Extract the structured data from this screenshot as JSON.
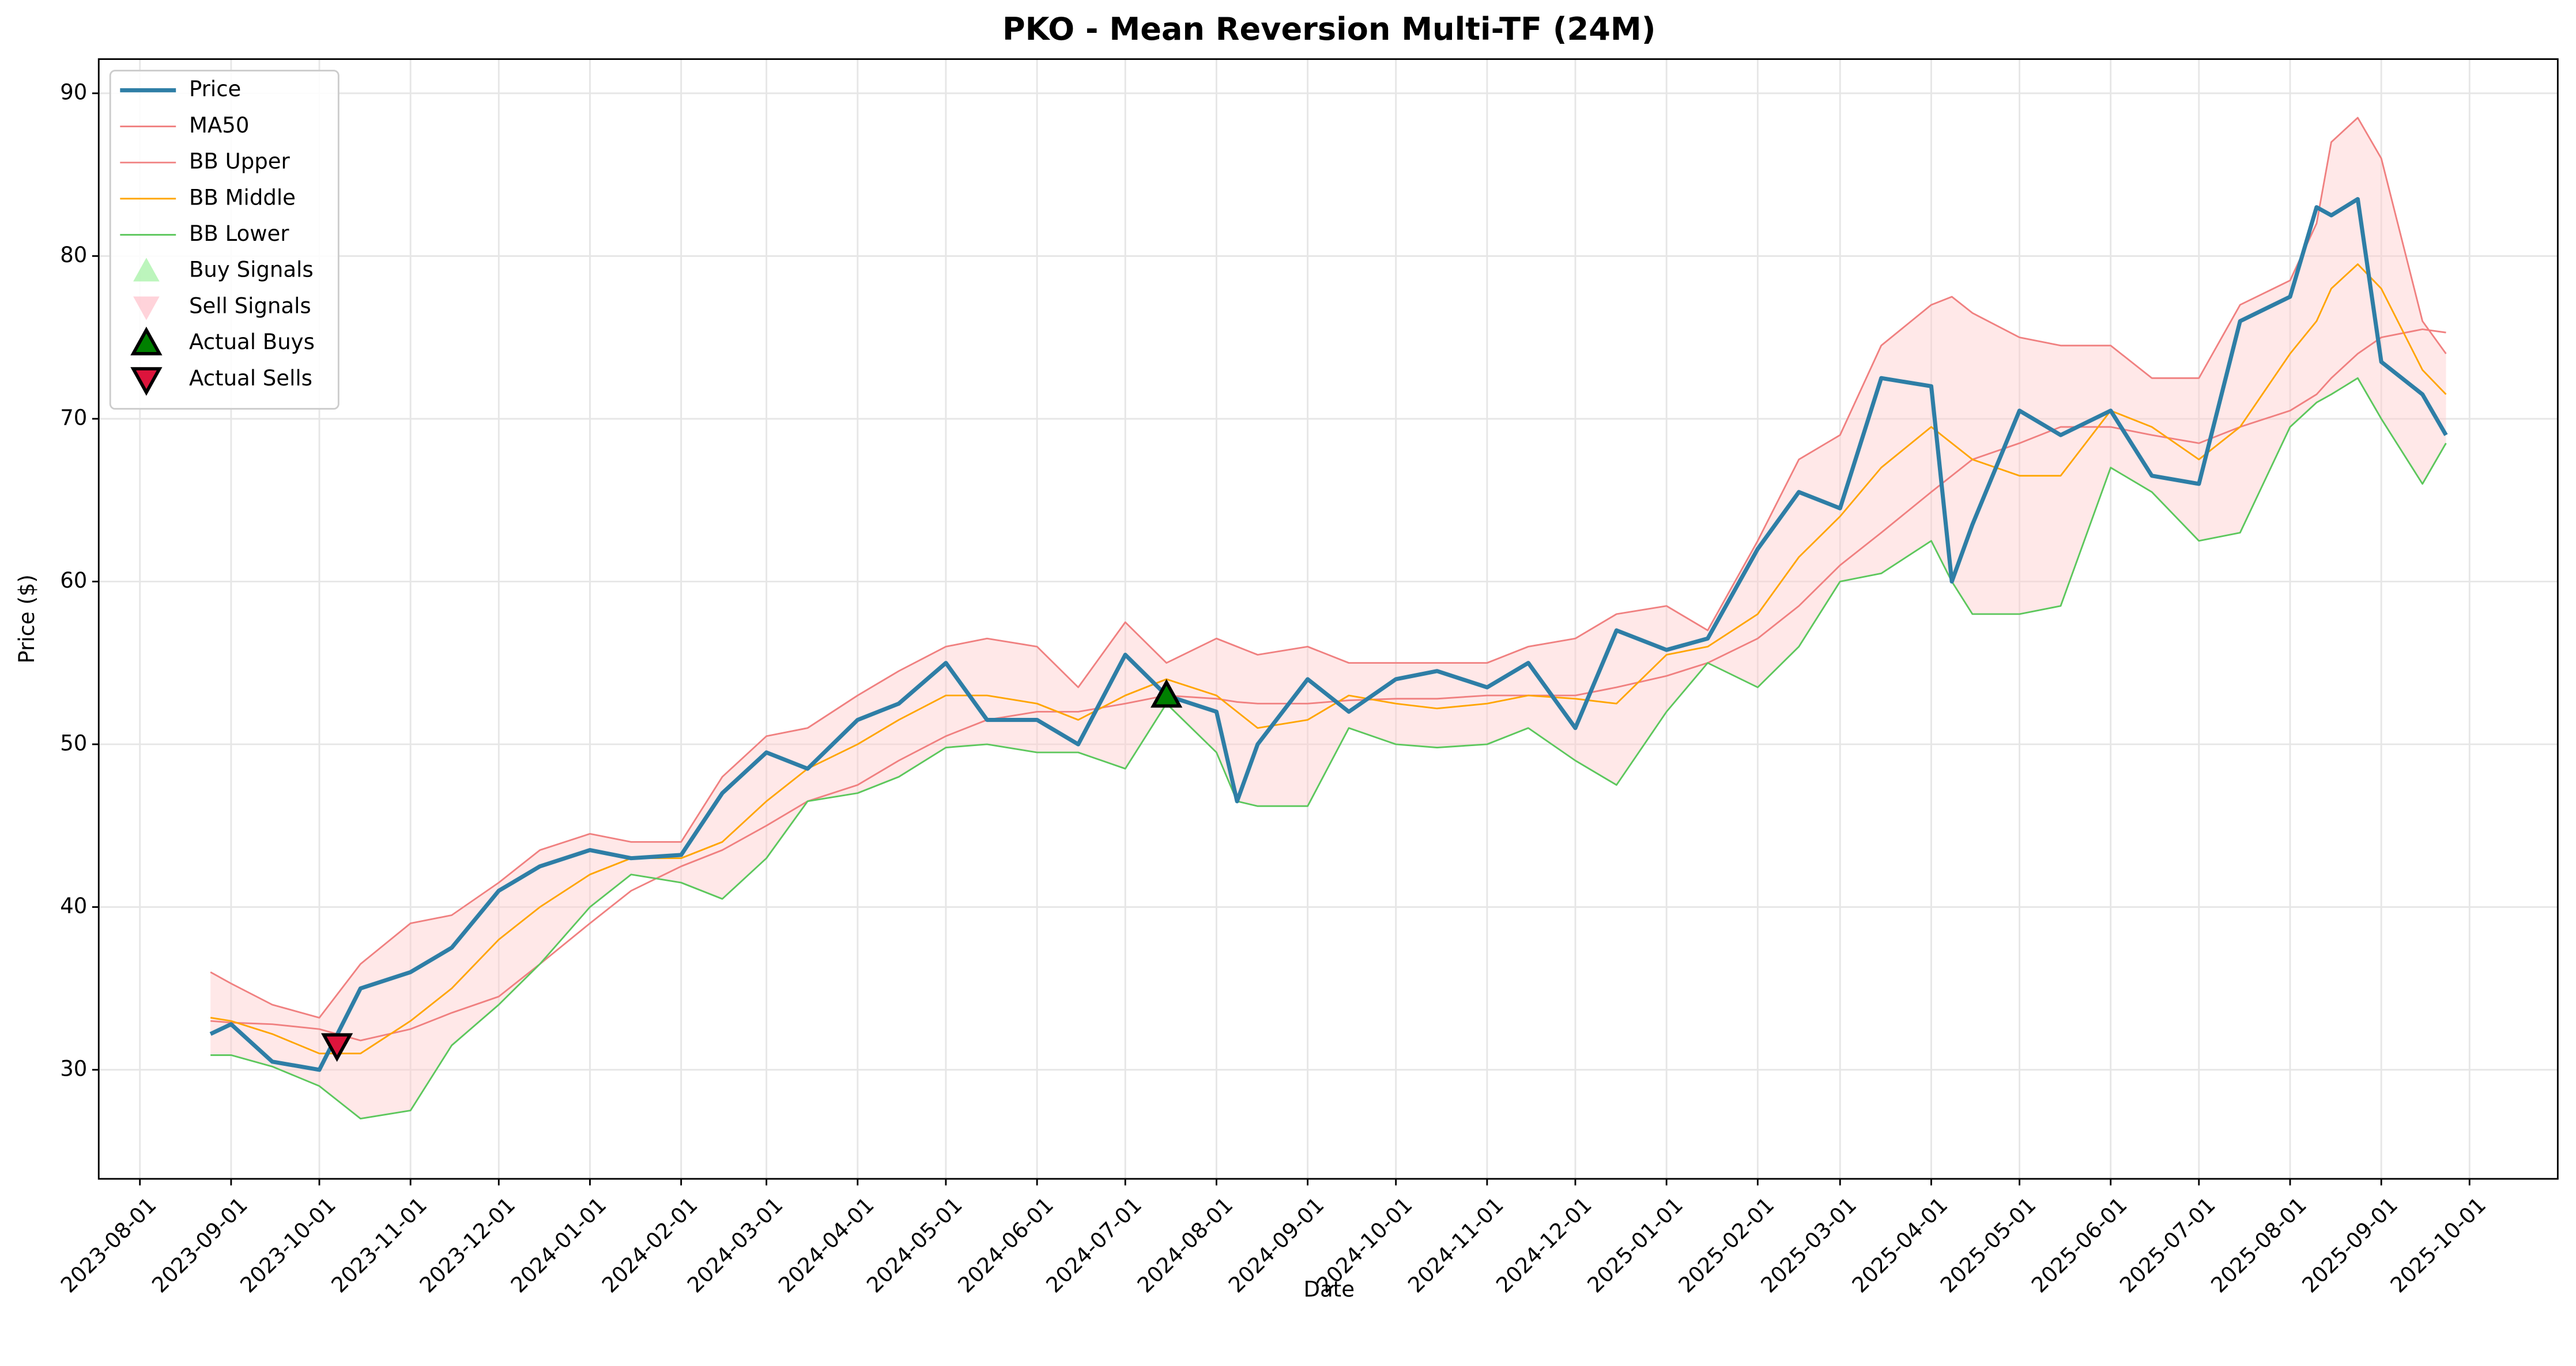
{
  "chart_data": {
    "type": "line",
    "title": "PKO - Mean Reversion Multi-TF (24M)",
    "x_label": "Date",
    "y_label": "Price ($)",
    "x": [
      "2023-08-25",
      "2023-09-01",
      "2023-09-15",
      "2023-10-01",
      "2023-10-15",
      "2023-11-01",
      "2023-11-15",
      "2023-12-01",
      "2023-12-15",
      "2024-01-01",
      "2024-01-15",
      "2024-02-01",
      "2024-02-15",
      "2024-03-01",
      "2024-03-15",
      "2024-04-01",
      "2024-04-15",
      "2024-05-01",
      "2024-05-15",
      "2024-06-01",
      "2024-06-15",
      "2024-07-01",
      "2024-07-15",
      "2024-08-01",
      "2024-08-08",
      "2024-08-15",
      "2024-09-01",
      "2024-09-15",
      "2024-10-01",
      "2024-10-15",
      "2024-11-01",
      "2024-11-15",
      "2024-12-01",
      "2024-12-15",
      "2025-01-01",
      "2025-01-15",
      "2025-02-01",
      "2025-02-15",
      "2025-03-01",
      "2025-03-15",
      "2025-04-01",
      "2025-04-08",
      "2025-04-15",
      "2025-05-01",
      "2025-05-15",
      "2025-06-01",
      "2025-06-15",
      "2025-07-01",
      "2025-07-15",
      "2025-08-01",
      "2025-08-10",
      "2025-08-15",
      "2025-08-24",
      "2025-09-01",
      "2025-09-15",
      "2025-09-23"
    ],
    "series": [
      {
        "name": "Price",
        "color": "#2e7ea6",
        "width": 2.5,
        "values": [
          32.2,
          32.8,
          30.5,
          30.0,
          35.0,
          36.0,
          37.5,
          41.0,
          42.5,
          43.5,
          43.0,
          43.2,
          47.0,
          49.5,
          48.5,
          51.5,
          52.5,
          55.0,
          51.5,
          51.5,
          50.0,
          55.5,
          53.0,
          52.0,
          46.5,
          50.0,
          54.0,
          52.0,
          54.0,
          54.5,
          53.5,
          55.0,
          51.0,
          57.0,
          55.8,
          56.5,
          62.0,
          65.5,
          64.5,
          72.5,
          72.0,
          60.0,
          63.5,
          70.5,
          69.0,
          70.5,
          66.5,
          66.0,
          76.0,
          77.5,
          83.0,
          82.5,
          83.5,
          73.5,
          71.5,
          69.0
        ]
      },
      {
        "name": "MA50",
        "color": "#f08080",
        "width": 1,
        "values": [
          33.0,
          32.9,
          32.8,
          32.5,
          31.8,
          32.5,
          33.5,
          34.5,
          36.5,
          39.0,
          41.0,
          42.5,
          43.5,
          45.0,
          46.5,
          47.5,
          49.0,
          50.5,
          51.5,
          52.0,
          52.0,
          52.5,
          53.0,
          52.8,
          52.6,
          52.5,
          52.5,
          52.7,
          52.8,
          52.8,
          53.0,
          53.0,
          53.0,
          53.5,
          54.2,
          55.0,
          56.5,
          58.5,
          61.0,
          63.0,
          65.5,
          66.5,
          67.5,
          68.5,
          69.5,
          69.5,
          69.0,
          68.5,
          69.5,
          70.5,
          71.5,
          72.5,
          74.0,
          75.0,
          75.5,
          75.3
        ]
      },
      {
        "name": "BB Upper",
        "color": "#f08080",
        "width": 1,
        "values": [
          36.0,
          35.3,
          34.0,
          33.2,
          36.5,
          39.0,
          39.5,
          41.5,
          43.5,
          44.5,
          44.0,
          44.0,
          48.0,
          50.5,
          51.0,
          53.0,
          54.5,
          56.0,
          56.5,
          56.0,
          53.5,
          57.5,
          55.0,
          56.5,
          56.0,
          55.5,
          56.0,
          55.0,
          55.0,
          55.0,
          55.0,
          56.0,
          56.5,
          58.0,
          58.5,
          57.0,
          62.5,
          67.5,
          69.0,
          74.5,
          77.0,
          77.5,
          76.5,
          75.0,
          74.5,
          74.5,
          72.5,
          72.5,
          77.0,
          78.5,
          82.0,
          87.0,
          88.5,
          86.0,
          76.0,
          74.0
        ]
      },
      {
        "name": "BB Middle",
        "color": "#ffa500",
        "width": 1,
        "values": [
          33.2,
          33.0,
          32.2,
          31.0,
          31.0,
          33.0,
          35.0,
          38.0,
          40.0,
          42.0,
          43.0,
          43.0,
          44.0,
          46.5,
          48.5,
          50.0,
          51.5,
          53.0,
          53.0,
          52.5,
          51.5,
          53.0,
          54.0,
          53.0,
          52.0,
          51.0,
          51.5,
          53.0,
          52.5,
          52.2,
          52.5,
          53.0,
          52.8,
          52.5,
          55.5,
          56.0,
          58.0,
          61.5,
          64.0,
          67.0,
          69.5,
          68.5,
          67.5,
          66.5,
          66.5,
          70.5,
          69.5,
          67.5,
          69.5,
          74.0,
          76.0,
          78.0,
          79.5,
          78.0,
          73.0,
          71.5
        ]
      },
      {
        "name": "BB Lower",
        "color": "#5cc75c",
        "width": 1,
        "values": [
          30.9,
          30.9,
          30.2,
          29.0,
          27.0,
          27.5,
          31.5,
          34.0,
          36.5,
          40.0,
          42.0,
          41.5,
          40.5,
          43.0,
          46.5,
          47.0,
          48.0,
          49.8,
          50.0,
          49.5,
          49.5,
          48.5,
          52.5,
          49.5,
          46.5,
          46.2,
          46.2,
          51.0,
          50.0,
          49.8,
          50.0,
          51.0,
          49.0,
          47.5,
          52.0,
          55.0,
          53.5,
          56.0,
          60.0,
          60.5,
          62.5,
          60.0,
          58.0,
          58.0,
          58.5,
          67.0,
          65.5,
          62.5,
          63.0,
          69.5,
          71.0,
          71.5,
          72.5,
          70.0,
          66.0,
          68.5
        ]
      }
    ],
    "band": {
      "upper": "BB Upper",
      "lower": "BB Lower",
      "color": "#ffcccc"
    },
    "signal_series": [
      {
        "name": "Buy Signals",
        "color": "#90ee90",
        "marker": "up",
        "x": [],
        "values": []
      },
      {
        "name": "Sell Signals",
        "color": "#ffb6c1",
        "marker": "down",
        "x": [],
        "values": []
      },
      {
        "name": "Actual Buys",
        "color": "#008000",
        "marker": "up",
        "x": [
          "2024-07-15"
        ],
        "values": [
          53.0
        ]
      },
      {
        "name": "Actual Sells",
        "color": "#dc143c",
        "marker": "down",
        "x": [
          "2023-10-07"
        ],
        "values": [
          31.5
        ]
      }
    ],
    "xlim": [
      "2023-07-18",
      "2025-10-31"
    ],
    "xticks": [
      "2023-08-01",
      "2023-09-01",
      "2023-10-01",
      "2023-11-01",
      "2023-12-01",
      "2024-01-01",
      "2024-02-01",
      "2024-03-01",
      "2024-04-01",
      "2024-05-01",
      "2024-06-01",
      "2024-07-01",
      "2024-08-01",
      "2024-09-01",
      "2024-10-01",
      "2024-11-01",
      "2024-12-01",
      "2025-01-01",
      "2025-02-01",
      "2025-03-01",
      "2025-04-01",
      "2025-05-01",
      "2025-06-01",
      "2025-07-01",
      "2025-08-01",
      "2025-09-01",
      "2025-10-01"
    ],
    "ylim": [
      23.3,
      92.1
    ],
    "yticks": [
      30,
      40,
      50,
      60,
      70,
      80,
      90
    ],
    "grid": true,
    "legend_position": "upper-left"
  }
}
